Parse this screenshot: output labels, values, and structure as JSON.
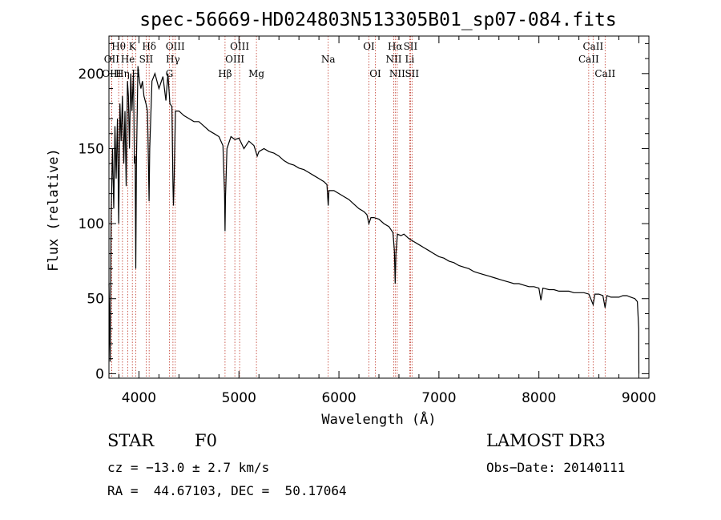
{
  "chart_data": {
    "type": "line",
    "title": "spec-56669-HD024803N513305B01_sp07-084.fits",
    "xlabel": "Wavelength (Å)",
    "ylabel": "Flux (relative)",
    "xlim": [
      3700,
      9100
    ],
    "ylim": [
      -3,
      225
    ],
    "xticks": [
      4000,
      5000,
      6000,
      7000,
      8000,
      9000
    ],
    "yticks": [
      0,
      50,
      100,
      150,
      200
    ],
    "series": [
      {
        "name": "spectrum",
        "points": [
          [
            3700,
            60
          ],
          [
            3712,
            8
          ],
          [
            3722,
            105
          ],
          [
            3735,
            150
          ],
          [
            3748,
            110
          ],
          [
            3760,
            165
          ],
          [
            3772,
            130
          ],
          [
            3785,
            170
          ],
          [
            3798,
            100
          ],
          [
            3810,
            180
          ],
          [
            3822,
            155
          ],
          [
            3835,
            185
          ],
          [
            3848,
            140
          ],
          [
            3860,
            175
          ],
          [
            3872,
            125
          ],
          [
            3885,
            195
          ],
          [
            3895,
            185
          ],
          [
            3905,
            150
          ],
          [
            3918,
            200
          ],
          [
            3930,
            175
          ],
          [
            3945,
            200
          ],
          [
            3955,
            140
          ],
          [
            3962,
            145
          ],
          [
            3968,
            70
          ],
          [
            3975,
            140
          ],
          [
            3990,
            205
          ],
          [
            4005,
            195
          ],
          [
            4020,
            190
          ],
          [
            4035,
            195
          ],
          [
            4050,
            185
          ],
          [
            4070,
            180
          ],
          [
            4085,
            175
          ],
          [
            4095,
            140
          ],
          [
            4101,
            115
          ],
          [
            4108,
            150
          ],
          [
            4130,
            195
          ],
          [
            4160,
            200
          ],
          [
            4200,
            190
          ],
          [
            4240,
            198
          ],
          [
            4270,
            182
          ],
          [
            4290,
            200
          ],
          [
            4310,
            180
          ],
          [
            4330,
            178
          ],
          [
            4340,
            125
          ],
          [
            4345,
            112
          ],
          [
            4352,
            130
          ],
          [
            4365,
            175
          ],
          [
            4400,
            175
          ],
          [
            4450,
            172
          ],
          [
            4500,
            170
          ],
          [
            4550,
            168
          ],
          [
            4600,
            168
          ],
          [
            4650,
            165
          ],
          [
            4700,
            162
          ],
          [
            4750,
            160
          ],
          [
            4800,
            158
          ],
          [
            4840,
            152
          ],
          [
            4856,
            120
          ],
          [
            4861,
            95
          ],
          [
            4866,
            118
          ],
          [
            4880,
            150
          ],
          [
            4920,
            158
          ],
          [
            4960,
            156
          ],
          [
            5000,
            157
          ],
          [
            5050,
            150
          ],
          [
            5100,
            155
          ],
          [
            5150,
            152
          ],
          [
            5183,
            145
          ],
          [
            5200,
            148
          ],
          [
            5250,
            150
          ],
          [
            5300,
            148
          ],
          [
            5350,
            147
          ],
          [
            5400,
            145
          ],
          [
            5450,
            142
          ],
          [
            5500,
            140
          ],
          [
            5550,
            139
          ],
          [
            5600,
            137
          ],
          [
            5650,
            136
          ],
          [
            5700,
            134
          ],
          [
            5750,
            132
          ],
          [
            5800,
            130
          ],
          [
            5850,
            128
          ],
          [
            5880,
            126
          ],
          [
            5893,
            112
          ],
          [
            5900,
            122
          ],
          [
            5950,
            122
          ],
          [
            6000,
            120
          ],
          [
            6050,
            118
          ],
          [
            6100,
            116
          ],
          [
            6150,
            113
          ],
          [
            6200,
            110
          ],
          [
            6250,
            108
          ],
          [
            6280,
            106
          ],
          [
            6300,
            100
          ],
          [
            6320,
            104
          ],
          [
            6350,
            104
          ],
          [
            6400,
            103
          ],
          [
            6450,
            100
          ],
          [
            6500,
            98
          ],
          [
            6540,
            94
          ],
          [
            6555,
            82
          ],
          [
            6563,
            60
          ],
          [
            6570,
            80
          ],
          [
            6585,
            93
          ],
          [
            6620,
            92
          ],
          [
            6650,
            93
          ],
          [
            6700,
            90
          ],
          [
            6750,
            88
          ],
          [
            6800,
            86
          ],
          [
            6850,
            84
          ],
          [
            6900,
            82
          ],
          [
            6950,
            80
          ],
          [
            7000,
            78
          ],
          [
            7050,
            77
          ],
          [
            7100,
            75
          ],
          [
            7150,
            74
          ],
          [
            7200,
            72
          ],
          [
            7250,
            71
          ],
          [
            7300,
            70
          ],
          [
            7350,
            68
          ],
          [
            7400,
            67
          ],
          [
            7450,
            66
          ],
          [
            7500,
            65
          ],
          [
            7550,
            64
          ],
          [
            7600,
            63
          ],
          [
            7650,
            62
          ],
          [
            7700,
            61
          ],
          [
            7750,
            60
          ],
          [
            7800,
            60
          ],
          [
            7850,
            59
          ],
          [
            7900,
            58
          ],
          [
            7950,
            58
          ],
          [
            8000,
            57
          ],
          [
            8020,
            49
          ],
          [
            8040,
            57
          ],
          [
            8100,
            56
          ],
          [
            8150,
            56
          ],
          [
            8200,
            55
          ],
          [
            8250,
            55
          ],
          [
            8300,
            55
          ],
          [
            8350,
            54
          ],
          [
            8400,
            54
          ],
          [
            8450,
            54
          ],
          [
            8500,
            53
          ],
          [
            8542,
            46
          ],
          [
            8560,
            53
          ],
          [
            8600,
            53
          ],
          [
            8640,
            52
          ],
          [
            8662,
            44
          ],
          [
            8680,
            52
          ],
          [
            8720,
            51
          ],
          [
            8760,
            51
          ],
          [
            8800,
            51
          ],
          [
            8840,
            52
          ],
          [
            8880,
            52
          ],
          [
            8920,
            51
          ],
          [
            8960,
            50
          ],
          [
            8985,
            48
          ],
          [
            8998,
            30
          ],
          [
            9000,
            0
          ]
        ]
      }
    ],
    "lines": [
      {
        "label": "Hθ",
        "wave": 3797,
        "row": 1
      },
      {
        "label": "OII",
        "wave": 3727,
        "row": 2
      },
      {
        "label": "OIII",
        "wave": 3727,
        "row": 3
      },
      {
        "label": "Hη",
        "wave": 3835,
        "row": 3
      },
      {
        "label": "He",
        "wave": 3889,
        "row": 2
      },
      {
        "label": "K",
        "wave": 3934,
        "row": 1
      },
      {
        "label": "H",
        "wave": 3968,
        "row": 3
      },
      {
        "label": "SII",
        "wave": 4072,
        "row": 2
      },
      {
        "label": "Hδ",
        "wave": 4102,
        "row": 1
      },
      {
        "label": "OIII",
        "wave": 4363,
        "row": 1
      },
      {
        "label": "Hγ",
        "wave": 4340,
        "row": 2
      },
      {
        "label": "G",
        "wave": 4304,
        "row": 3
      },
      {
        "label": "Hβ",
        "wave": 4861,
        "row": 3
      },
      {
        "label": "OIII",
        "wave": 4959,
        "row": 2
      },
      {
        "label": "OIII",
        "wave": 5007,
        "row": 1
      },
      {
        "label": "Mg",
        "wave": 5175,
        "row": 3
      },
      {
        "label": "Na",
        "wave": 5893,
        "row": 2
      },
      {
        "label": "OI",
        "wave": 6300,
        "row": 1
      },
      {
        "label": "OI",
        "wave": 6364,
        "row": 3
      },
      {
        "label": "NII",
        "wave": 6548,
        "row": 2
      },
      {
        "label": "Hα",
        "wave": 6563,
        "row": 1
      },
      {
        "label": "NII",
        "wave": 6583,
        "row": 3
      },
      {
        "label": "Li",
        "wave": 6708,
        "row": 2
      },
      {
        "label": "SII",
        "wave": 6716,
        "row": 1
      },
      {
        "label": "SII",
        "wave": 6731,
        "row": 3
      },
      {
        "label": "CaII",
        "wave": 8498,
        "row": 2
      },
      {
        "label": "CaII",
        "wave": 8542,
        "row": 1
      },
      {
        "label": "CaII",
        "wave": 8662,
        "row": 3
      }
    ]
  },
  "info": {
    "object_class": "STAR",
    "subclass": "F0",
    "cz": "cz = −13.0 ± 2.7 km/s",
    "coords": "RA =  44.67103, DEC =  50.17064",
    "survey": "LAMOST DR3",
    "obs_date": "Obs−Date: 20140111"
  }
}
